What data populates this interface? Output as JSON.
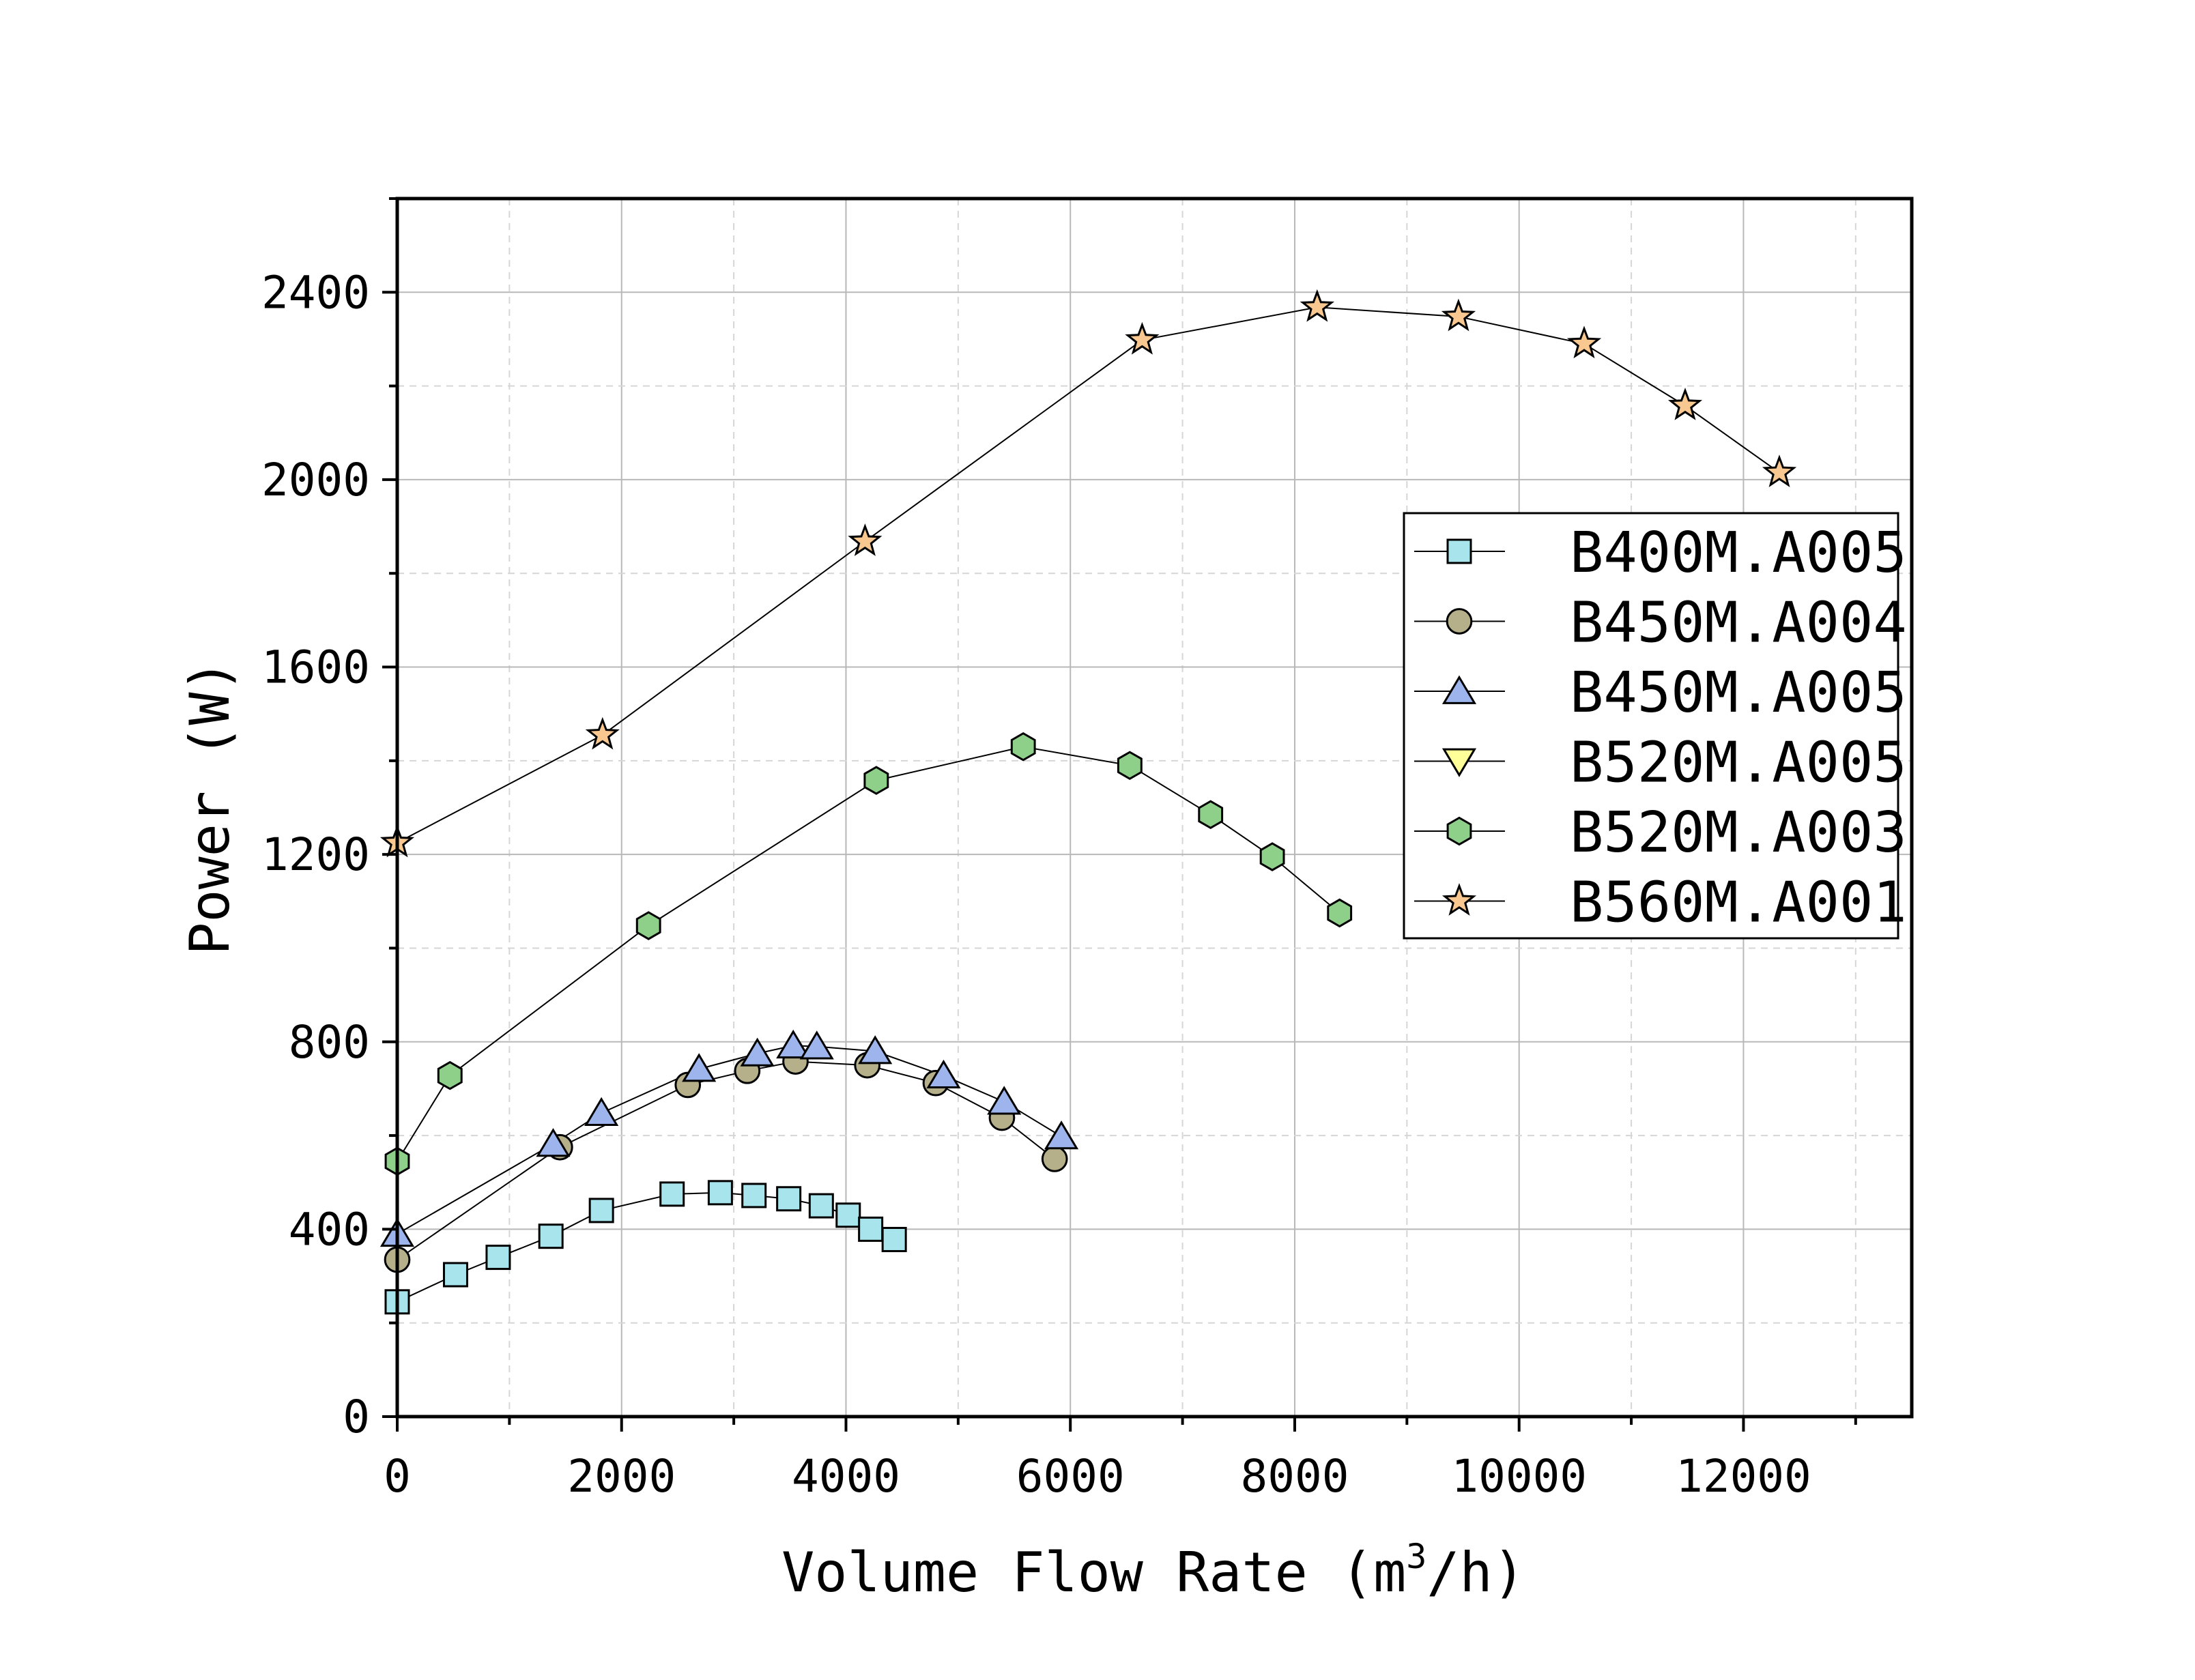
{
  "chart_data": {
    "type": "line",
    "title": "",
    "xlabel_main": "Volume Flow Rate (m",
    "xlabel_sup": "3",
    "xlabel_tail": "/h)",
    "ylabel": "Power (W)",
    "xlim": [
      0,
      13500
    ],
    "ylim": [
      0,
      2600
    ],
    "x_ticks": [
      0,
      2000,
      4000,
      6000,
      8000,
      10000,
      12000
    ],
    "y_ticks": [
      0,
      400,
      800,
      1200,
      1600,
      2000,
      2400
    ],
    "grid": true,
    "legend_position": "right",
    "series": [
      {
        "name": "B400M.A005",
        "marker": "square",
        "color": "#a8e4ec",
        "x": [
          0,
          520,
          900,
          1370,
          1820,
          2450,
          2880,
          3180,
          3490,
          3780,
          4020,
          4220,
          4430
        ],
        "y": [
          245,
          303,
          340,
          385,
          440,
          475,
          478,
          472,
          465,
          450,
          430,
          400,
          378
        ]
      },
      {
        "name": "B450M.A004",
        "marker": "circle",
        "color": "#b5b08a",
        "x": [
          0,
          1450,
          2590,
          3120,
          3550,
          4190,
          4800,
          5390,
          5860
        ],
        "y": [
          335,
          575,
          708,
          738,
          758,
          750,
          712,
          638,
          550
        ]
      },
      {
        "name": "B450M.A005",
        "marker": "triangle-up",
        "color": "#9db5ec",
        "x": [
          0,
          1390,
          1820,
          2690,
          3210,
          3530,
          3740,
          4260,
          4870,
          5410,
          5920
        ],
        "y": [
          390,
          582,
          648,
          742,
          775,
          792,
          790,
          780,
          728,
          672,
          598
        ]
      },
      {
        "name": "B520M.A005",
        "marker": "triangle-down",
        "color": "#ffff99",
        "x": [],
        "y": []
      },
      {
        "name": "B520M.A003",
        "marker": "hexagon",
        "color": "#8ed08a",
        "x": [
          0,
          470,
          2240,
          4270,
          5580,
          6530,
          7250,
          7800,
          8400
        ],
        "y": [
          545,
          728,
          1048,
          1358,
          1430,
          1390,
          1285,
          1195,
          1075
        ]
      },
      {
        "name": "B560M.A001",
        "marker": "star",
        "color": "#f9c890",
        "x": [
          0,
          1830,
          4170,
          6640,
          8200,
          9460,
          10580,
          11480,
          12320
        ],
        "y": [
          1225,
          1455,
          1868,
          2298,
          2368,
          2348,
          2290,
          2158,
          2015
        ]
      }
    ]
  }
}
